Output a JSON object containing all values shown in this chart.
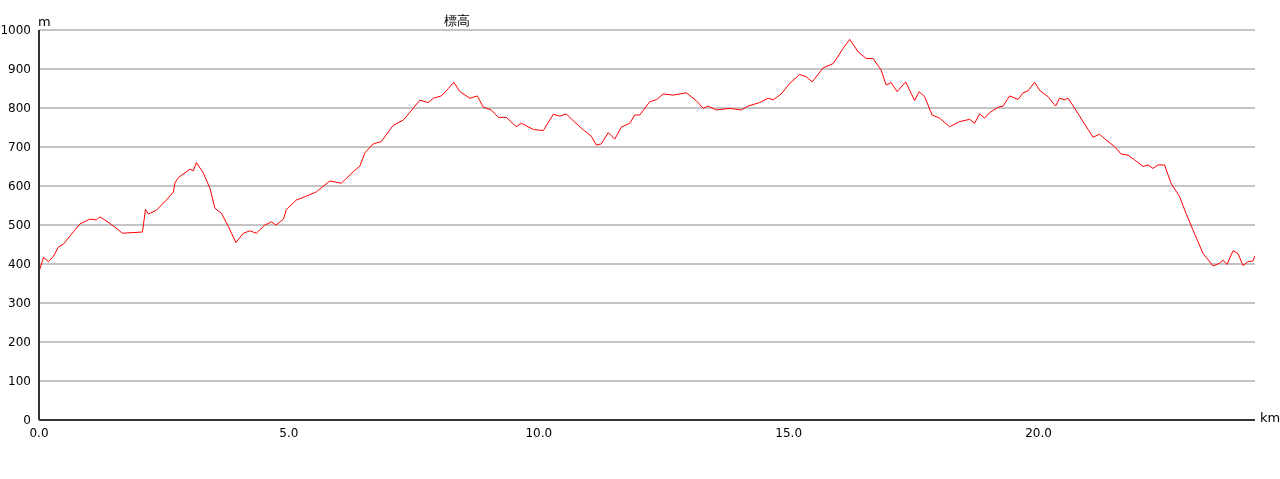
{
  "chart_data": {
    "type": "line",
    "title": "標高",
    "xlabel": "km",
    "ylabel": "m",
    "x": [
      0,
      0.09,
      0.19,
      0.29,
      0.39,
      0.49,
      0.69,
      0.82,
      1.02,
      1.15,
      1.22,
      1.42,
      1.67,
      2.07,
      2.13,
      2.19,
      2.35,
      2.55,
      2.69,
      2.72,
      2.79,
      3.02,
      3.09,
      3.15,
      3.29,
      3.42,
      3.52,
      3.65,
      3.79,
      3.94,
      4.09,
      4.22,
      4.35,
      4.52,
      4.65,
      4.74,
      4.89,
      4.95,
      5.15,
      5.35,
      5.55,
      5.82,
      6.05,
      6.29,
      6.42,
      6.52,
      6.69,
      6.85,
      7.09,
      7.29,
      7.62,
      7.79,
      7.89,
      8.05,
      8.19,
      8.3,
      8.42,
      8.62,
      8.77,
      8.89,
      9.05,
      9.19,
      9.35,
      9.55,
      9.65,
      9.89,
      10.09,
      10.29,
      10.42,
      10.55,
      10.69,
      10.89,
      11.05,
      11.15,
      11.25,
      11.39,
      11.52,
      11.65,
      11.82,
      11.92,
      12.02,
      12.22,
      12.35,
      12.49,
      12.69,
      12.95,
      13.15,
      13.29,
      13.39,
      13.55,
      13.82,
      14.05,
      14.19,
      14.42,
      14.59,
      14.69,
      14.85,
      15.02,
      15.22,
      15.35,
      15.47,
      15.69,
      15.89,
      15.99,
      16.09,
      16.22,
      16.39,
      16.55,
      16.69,
      16.85,
      16.95,
      17.05,
      17.17,
      17.34,
      17.52,
      17.61,
      17.72,
      17.87,
      18.02,
      18.22,
      18.42,
      18.62,
      18.72,
      18.82,
      18.92,
      19.02,
      19.19,
      19.29,
      19.42,
      19.59,
      19.69,
      19.79,
      19.92,
      20.03,
      20.19,
      20.34,
      20.42,
      20.52,
      20.59,
      20.72,
      20.89,
      21.09,
      21.22,
      21.35,
      21.52,
      21.65,
      21.79,
      21.92,
      22.09,
      22.19,
      22.29,
      22.39,
      22.52,
      22.65,
      22.82,
      22.95,
      23.09,
      23.29,
      23.49,
      23.62,
      23.69,
      23.77,
      23.89,
      23.99,
      24.09,
      24.19,
      24.29,
      24.33
    ],
    "series": [
      {
        "color": "#ff0000",
        "values": [
          380,
          417,
          406,
          420,
          444,
          451,
          483,
          503,
          515,
          513,
          521,
          504,
          479,
          482,
          540,
          528,
          538,
          564,
          585,
          608,
          622,
          643,
          639,
          660,
          633,
          594,
          543,
          530,
          496,
          455,
          479,
          485,
          479,
          500,
          508,
          500,
          515,
          540,
          564,
          574,
          585,
          613,
          607,
          637,
          651,
          685,
          708,
          714,
          756,
          769,
          820,
          814,
          825,
          831,
          850,
          866,
          842,
          825,
          831,
          802,
          795,
          776,
          776,
          752,
          761,
          745,
          742,
          784,
          779,
          785,
          767,
          744,
          728,
          705,
          708,
          737,
          720,
          751,
          761,
          782,
          782,
          816,
          821,
          836,
          833,
          839,
          819,
          799,
          805,
          795,
          799,
          795,
          805,
          814,
          825,
          821,
          836,
          863,
          886,
          880,
          867,
          903,
          914,
          933,
          953,
          976,
          944,
          927,
          927,
          897,
          859,
          865,
          842,
          867,
          819,
          842,
          829,
          782,
          774,
          752,
          765,
          771,
          761,
          785,
          774,
          788,
          802,
          805,
          831,
          822,
          839,
          844,
          866,
          844,
          829,
          805,
          825,
          821,
          825,
          800,
          765,
          725,
          733,
          718,
          701,
          682,
          679,
          667,
          650,
          654,
          645,
          654,
          654,
          607,
          573,
          530,
          487,
          427,
          395,
          402,
          410,
          399,
          434,
          427,
          396,
          406,
          408,
          421
        ]
      }
    ],
    "xlim": [
      0,
      24.33
    ],
    "xticks": [
      {
        "value": 0,
        "label": "0.0"
      },
      {
        "value": 5,
        "label": "5.0"
      },
      {
        "value": 10,
        "label": "10.0"
      },
      {
        "value": 15,
        "label": "15.0"
      },
      {
        "value": 20,
        "label": "20.0"
      }
    ],
    "ylim": [
      0,
      1000
    ],
    "yticks": [
      0,
      100,
      200,
      300,
      400,
      500,
      600,
      700,
      800,
      900,
      1000
    ],
    "grid": "y"
  }
}
